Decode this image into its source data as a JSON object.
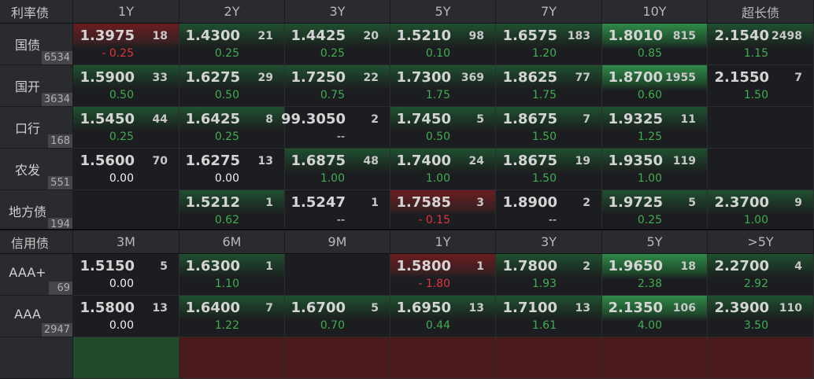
{
  "rates": {
    "title": "利率债",
    "tenors": [
      "1Y",
      "2Y",
      "3Y",
      "5Y",
      "7Y",
      "10Y",
      "超长债"
    ],
    "rows": [
      {
        "name": "国债",
        "count": "6534",
        "cells": [
          {
            "yield": "1.3975",
            "volume": "18",
            "change": "- 0.25",
            "dir": "dn",
            "heat": "r"
          },
          {
            "yield": "1.4300",
            "volume": "21",
            "change": "0.25",
            "dir": "up",
            "heat": "g"
          },
          {
            "yield": "1.4425",
            "volume": "20",
            "change": "0.25",
            "dir": "up",
            "heat": "g"
          },
          {
            "yield": "1.5210",
            "volume": "98",
            "change": "0.10",
            "dir": "up",
            "heat": "g"
          },
          {
            "yield": "1.6575",
            "volume": "183",
            "change": "1.20",
            "dir": "up",
            "heat": "g"
          },
          {
            "yield": "1.8010",
            "volume": "815",
            "change": "0.85",
            "dir": "up",
            "heat": "G"
          },
          {
            "yield": "2.1540",
            "volume": "2498",
            "change": "1.15",
            "dir": "up",
            "heat": "g"
          }
        ]
      },
      {
        "name": "国开",
        "count": "3634",
        "cells": [
          {
            "yield": "1.5900",
            "volume": "33",
            "change": "0.50",
            "dir": "up",
            "heat": "g"
          },
          {
            "yield": "1.6275",
            "volume": "29",
            "change": "0.50",
            "dir": "up",
            "heat": "g"
          },
          {
            "yield": "1.7250",
            "volume": "22",
            "change": "0.75",
            "dir": "up",
            "heat": "g"
          },
          {
            "yield": "1.7300",
            "volume": "369",
            "change": "1.75",
            "dir": "up",
            "heat": "g"
          },
          {
            "yield": "1.8625",
            "volume": "77",
            "change": "1.75",
            "dir": "up",
            "heat": "g"
          },
          {
            "yield": "1.8700",
            "volume": "1955",
            "change": "0.60",
            "dir": "up",
            "heat": "G"
          },
          {
            "yield": "2.1550",
            "volume": "7",
            "change": "1.50",
            "dir": "up",
            "heat": ""
          }
        ]
      },
      {
        "name": "口行",
        "count": "168",
        "cells": [
          {
            "yield": "1.5450",
            "volume": "44",
            "change": "0.25",
            "dir": "up",
            "heat": "g"
          },
          {
            "yield": "1.6425",
            "volume": "8",
            "change": "0.25",
            "dir": "up",
            "heat": "g"
          },
          {
            "yield": "99.3050",
            "volume": "2",
            "change": "--",
            "dir": "flat",
            "heat": ""
          },
          {
            "yield": "1.7450",
            "volume": "5",
            "change": "0.50",
            "dir": "up",
            "heat": "g"
          },
          {
            "yield": "1.8675",
            "volume": "7",
            "change": "1.50",
            "dir": "up",
            "heat": "g"
          },
          {
            "yield": "1.9325",
            "volume": "11",
            "change": "1.25",
            "dir": "up",
            "heat": "g"
          },
          null
        ]
      },
      {
        "name": "农发",
        "count": "551",
        "cells": [
          {
            "yield": "1.5600",
            "volume": "70",
            "change": "0.00",
            "dir": "flat",
            "heat": ""
          },
          {
            "yield": "1.6275",
            "volume": "13",
            "change": "0.00",
            "dir": "flat",
            "heat": ""
          },
          {
            "yield": "1.6875",
            "volume": "48",
            "change": "1.00",
            "dir": "up",
            "heat": "g"
          },
          {
            "yield": "1.7400",
            "volume": "24",
            "change": "1.00",
            "dir": "up",
            "heat": "g"
          },
          {
            "yield": "1.8675",
            "volume": "19",
            "change": "1.50",
            "dir": "up",
            "heat": "g"
          },
          {
            "yield": "1.9350",
            "volume": "119",
            "change": "1.00",
            "dir": "up",
            "heat": "g"
          },
          null
        ]
      },
      {
        "name": "地方债",
        "count": "194",
        "cells": [
          null,
          {
            "yield": "1.5212",
            "volume": "1",
            "change": "0.62",
            "dir": "up",
            "heat": "g"
          },
          {
            "yield": "1.5247",
            "volume": "1",
            "change": "--",
            "dir": "flat",
            "heat": ""
          },
          {
            "yield": "1.7585",
            "volume": "3",
            "change": "- 0.15",
            "dir": "dn",
            "heat": "r"
          },
          {
            "yield": "1.8900",
            "volume": "2",
            "change": "--",
            "dir": "flat",
            "heat": ""
          },
          {
            "yield": "1.9725",
            "volume": "5",
            "change": "0.25",
            "dir": "up",
            "heat": "g"
          },
          {
            "yield": "2.3700",
            "volume": "9",
            "change": "1.00",
            "dir": "up",
            "heat": "g"
          }
        ]
      }
    ]
  },
  "credit": {
    "title": "信用债",
    "tenors": [
      "3M",
      "6M",
      "9M",
      "1Y",
      "3Y",
      "5Y",
      ">5Y"
    ],
    "rows": [
      {
        "name": "AAA+",
        "count": "69",
        "cells": [
          {
            "yield": "1.5150",
            "volume": "5",
            "change": "0.00",
            "dir": "flat",
            "heat": ""
          },
          {
            "yield": "1.6300",
            "volume": "1",
            "change": "1.10",
            "dir": "up",
            "heat": "g"
          },
          null,
          {
            "yield": "1.5800",
            "volume": "1",
            "change": "- 1.80",
            "dir": "dn",
            "heat": "r"
          },
          {
            "yield": "1.7800",
            "volume": "2",
            "change": "1.93",
            "dir": "up",
            "heat": "g"
          },
          {
            "yield": "1.9650",
            "volume": "18",
            "change": "2.38",
            "dir": "up",
            "heat": "G"
          },
          {
            "yield": "2.2700",
            "volume": "4",
            "change": "2.92",
            "dir": "up",
            "heat": "g"
          }
        ]
      },
      {
        "name": "AAA",
        "count": "2947",
        "cells": [
          {
            "yield": "1.5800",
            "volume": "13",
            "change": "0.00",
            "dir": "flat",
            "heat": ""
          },
          {
            "yield": "1.6400",
            "volume": "7",
            "change": "1.22",
            "dir": "up",
            "heat": "g"
          },
          {
            "yield": "1.6700",
            "volume": "5",
            "change": "0.70",
            "dir": "up",
            "heat": "g"
          },
          {
            "yield": "1.6950",
            "volume": "13",
            "change": "0.44",
            "dir": "up",
            "heat": "g"
          },
          {
            "yield": "1.7100",
            "volume": "13",
            "change": "1.61",
            "dir": "up",
            "heat": "g"
          },
          {
            "yield": "2.1350",
            "volume": "106",
            "change": "4.00",
            "dir": "up",
            "heat": "G"
          },
          {
            "yield": "2.3900",
            "volume": "110",
            "change": "3.50",
            "dir": "up",
            "heat": "g"
          }
        ]
      }
    ],
    "partial_row_heat": [
      "pg",
      "pr",
      "pr",
      "pr",
      "pr",
      "pr",
      "pr"
    ]
  },
  "colors": {
    "up": "#3fae4f",
    "down": "#e0343c",
    "header_bg": "#2a2b2f",
    "cell_bg": "#1c1d20"
  }
}
